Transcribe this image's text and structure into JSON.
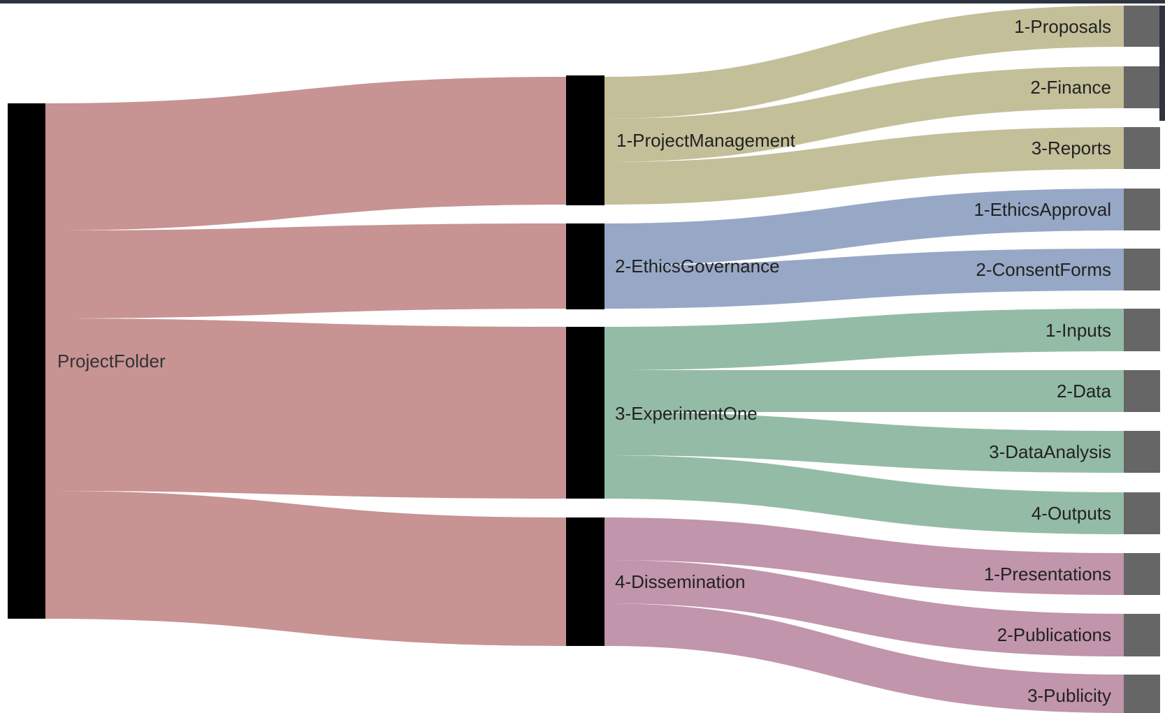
{
  "diagram": {
    "type": "sankey",
    "root": {
      "label": "ProjectFolder"
    },
    "groups": [
      {
        "label": "1-ProjectManagement",
        "color": "#c3bf99",
        "children": [
          "1-Proposals",
          "2-Finance",
          "3-Reports"
        ]
      },
      {
        "label": "2-EthicsGovernance",
        "color": "#97a8c6",
        "children": [
          "1-EthicsApproval",
          "2-ConsentForms"
        ]
      },
      {
        "label": "3-ExperimentOne",
        "color": "#94bba6",
        "children": [
          "1-Inputs",
          "2-Data",
          "3-DataAnalysis",
          "4-Outputs"
        ]
      },
      {
        "label": "4-Dissemination",
        "color": "#c195ab",
        "children": [
          "1-Presentations",
          "2-Publications",
          "3-Publicity"
        ]
      }
    ],
    "colors": {
      "root_link": "#c79393",
      "inner_node": "#000000",
      "leaf_node": "#666666",
      "top_bar": "#2e3440"
    }
  }
}
